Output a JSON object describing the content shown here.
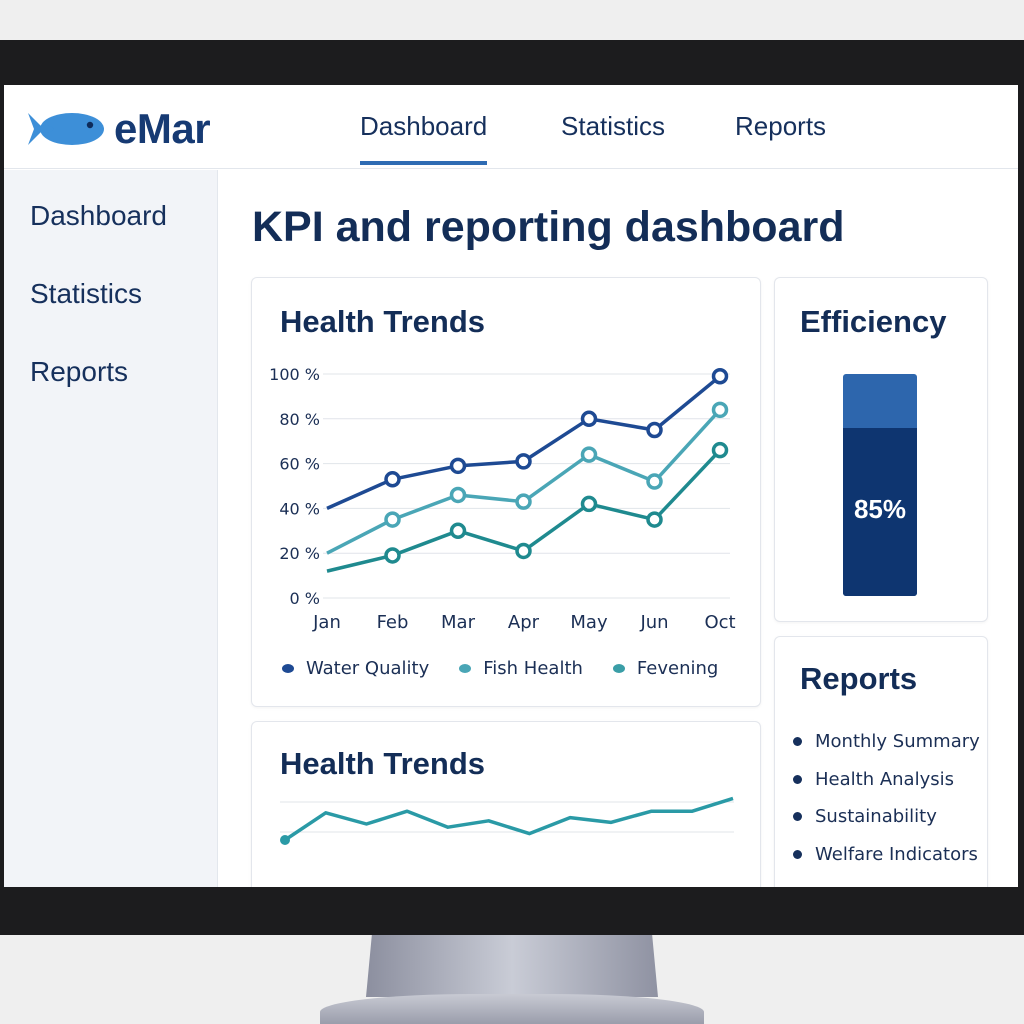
{
  "app": {
    "name": "eMar"
  },
  "topnav": {
    "tabs": [
      {
        "label": "Dashboard",
        "active": true
      },
      {
        "label": "Statistics"
      },
      {
        "label": "Reports"
      }
    ]
  },
  "sidebar": {
    "items": [
      {
        "label": "Dashboard"
      },
      {
        "label": "Statistics"
      },
      {
        "label": "Reports"
      }
    ]
  },
  "page": {
    "title": "KPI and reporting dashboard"
  },
  "health_trends": {
    "title": "Health Trends",
    "legend": [
      {
        "label": "Water Quality",
        "color": "#1e4a93"
      },
      {
        "label": "Fish Health",
        "color": "#4aa6b6"
      },
      {
        "label": "Fevening",
        "color": "#3a9ea7"
      }
    ]
  },
  "health_trends_2": {
    "title": "Health Trends"
  },
  "efficiency": {
    "title": "Efficiency",
    "value": 85,
    "label": "85%"
  },
  "reports": {
    "title": "Reports",
    "items": [
      "Monthly Summary",
      "Health Analysis",
      "Sustainability",
      "Welfare Indicators"
    ]
  },
  "chart_data": [
    {
      "type": "line",
      "title": "Health Trends",
      "categories": [
        "Jan",
        "Feb",
        "Mar",
        "Apr",
        "May",
        "Jun",
        "Oct"
      ],
      "y_tick_labels": [
        "0 %",
        "20 %",
        "40 %",
        "60 %",
        "80 %",
        "100 %"
      ],
      "ylim": [
        0,
        100
      ],
      "grid": true,
      "legend": "bottom",
      "series": [
        {
          "name": "Water Quality",
          "values": [
            40,
            53,
            59,
            61,
            80,
            75,
            99
          ],
          "color": "#1e4a93",
          "markers": [
            false,
            true,
            true,
            true,
            true,
            true,
            true
          ]
        },
        {
          "name": "Fish Health",
          "values": [
            20,
            35,
            46,
            43,
            64,
            52,
            84
          ],
          "color": "#4aa6b6",
          "markers": [
            false,
            true,
            true,
            true,
            true,
            true,
            true
          ]
        },
        {
          "name": "Fevening",
          "values": [
            12,
            19,
            30,
            21,
            42,
            35,
            66
          ],
          "color": "#1f8a8f",
          "markers": [
            false,
            true,
            true,
            true,
            true,
            true,
            true
          ]
        }
      ]
    },
    {
      "type": "line",
      "title": "Health Trends",
      "grid": true,
      "series": [
        {
          "values": [
            45,
            62,
            55,
            63,
            53,
            57,
            49,
            59,
            56,
            63,
            63,
            71
          ],
          "color": "#2a9aa6"
        }
      ]
    }
  ]
}
